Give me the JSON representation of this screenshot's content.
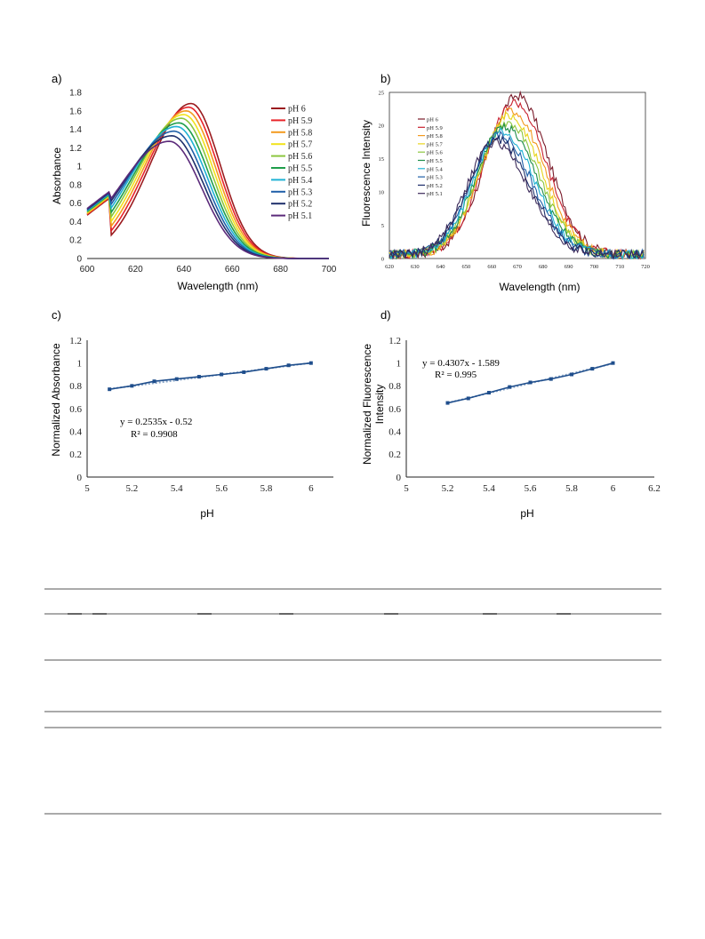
{
  "figure": {
    "charts": [
      {
        "panel_label": "a)",
        "type": "line",
        "xlabel": "Wavelength (nm)",
        "ylabel": "Absorbance",
        "xlim": [
          600,
          700
        ],
        "ylim": [
          0,
          1.8
        ],
        "xticks": [
          600,
          620,
          640,
          660,
          680,
          700
        ],
        "yticks": [
          0,
          0.2,
          0.4,
          0.6,
          0.8,
          1,
          1.2,
          1.4,
          1.6,
          1.8
        ],
        "x_tick_labels": [
          "600",
          "620",
          "640",
          "660",
          "680",
          "700"
        ],
        "y_tick_labels": [
          "0",
          "0.2",
          "0.4",
          "0.6",
          "0.8",
          "1",
          "1.2",
          "1.4",
          "1.6",
          "1.8"
        ],
        "legend_position": "right",
        "series": [
          {
            "name": "pH 6",
            "color": "#9b1b1f",
            "peak_x": 643,
            "peak_y": 1.68
          },
          {
            "name": "pH 5.9",
            "color": "#e8242a",
            "peak_x": 642,
            "peak_y": 1.64
          },
          {
            "name": "pH 5.8",
            "color": "#f39a1f",
            "peak_x": 641,
            "peak_y": 1.6
          },
          {
            "name": "pH 5.7",
            "color": "#f2e21c",
            "peak_x": 640,
            "peak_y": 1.56
          },
          {
            "name": "pH 5.6",
            "color": "#8cc63f",
            "peak_x": 639,
            "peak_y": 1.52
          },
          {
            "name": "pH 5.5",
            "color": "#1e9e4a",
            "peak_x": 638,
            "peak_y": 1.47
          },
          {
            "name": "pH 5.4",
            "color": "#1fb2d4",
            "peak_x": 637,
            "peak_y": 1.43
          },
          {
            "name": "pH 5.3",
            "color": "#1f5fa8",
            "peak_x": 636,
            "peak_y": 1.38
          },
          {
            "name": "pH 5.2",
            "color": "#1e2f6b",
            "peak_x": 635,
            "peak_y": 1.33
          },
          {
            "name": "pH 5.1",
            "color": "#5b2a7a",
            "peak_x": 634,
            "peak_y": 1.27
          }
        ]
      },
      {
        "panel_label": "b)",
        "type": "line",
        "xlabel": "Wavelength (nm)",
        "ylabel": "Fluorescence Intensity",
        "xlim": [
          620,
          720
        ],
        "ylim": [
          0,
          25
        ],
        "xticks": [
          620,
          630,
          640,
          650,
          660,
          670,
          680,
          690,
          700,
          710,
          720
        ],
        "yticks": [
          0,
          5,
          10,
          15,
          20,
          25
        ],
        "x_tick_labels": [
          "620",
          "630",
          "640",
          "650",
          "660",
          "670",
          "680",
          "690",
          "700",
          "710",
          "720"
        ],
        "y_tick_labels": [
          "0",
          "5",
          "10",
          "15",
          "20",
          "25"
        ],
        "legend_position": "left",
        "series": [
          {
            "name": "pH 6",
            "color": "#7a1b2a",
            "peak_x": 670,
            "peak_y": 24.5
          },
          {
            "name": "pH 5.9",
            "color": "#c8202e",
            "peak_x": 669,
            "peak_y": 23.5
          },
          {
            "name": "pH 5.8",
            "color": "#f39a1f",
            "peak_x": 668,
            "peak_y": 22.3
          },
          {
            "name": "pH 5.7",
            "color": "#e8d41c",
            "peak_x": 667,
            "peak_y": 21.5
          },
          {
            "name": "pH 5.6",
            "color": "#8cc63f",
            "peak_x": 666,
            "peak_y": 20.5
          },
          {
            "name": "pH 5.5",
            "color": "#1e8e4a",
            "peak_x": 665,
            "peak_y": 19.8
          },
          {
            "name": "pH 5.4",
            "color": "#1fb2d4",
            "peak_x": 664,
            "peak_y": 19.2
          },
          {
            "name": "pH 5.3",
            "color": "#1f5fa8",
            "peak_x": 663,
            "peak_y": 18.5
          },
          {
            "name": "pH 5.2",
            "color": "#1e2f6b",
            "peak_x": 662,
            "peak_y": 18.0
          },
          {
            "name": "pH 5.1",
            "color": "#3c2a5a",
            "peak_x": 661,
            "peak_y": 17.5
          }
        ]
      },
      {
        "panel_label": "c)",
        "type": "scatter",
        "xlabel": "pH",
        "ylabel": "Normalized Absorbance",
        "xlim": [
          5,
          6.1
        ],
        "ylim": [
          0,
          1.2
        ],
        "xticks": [
          5,
          5.2,
          5.4,
          5.6,
          5.8,
          6
        ],
        "yticks": [
          0,
          0.2,
          0.4,
          0.6,
          0.8,
          1,
          1.2
        ],
        "x_tick_labels": [
          "5",
          "5.2",
          "5.4",
          "5.6",
          "5.8",
          "6"
        ],
        "y_tick_labels": [
          "0",
          "0.2",
          "0.4",
          "0.6",
          "0.8",
          "1",
          "1.2"
        ],
        "x": [
          5.1,
          5.2,
          5.3,
          5.4,
          5.5,
          5.6,
          5.7,
          5.8,
          5.9,
          6.0
        ],
        "y": [
          0.77,
          0.8,
          0.84,
          0.86,
          0.88,
          0.9,
          0.92,
          0.95,
          0.98,
          1.0
        ],
        "trendline": {
          "slope": 0.2535,
          "intercept": -0.52,
          "from": 5.1,
          "to": 6.0
        },
        "equation": "y = 0.2535x - 0.52",
        "r2": "R² = 0.9908",
        "color": "#1f4e8c"
      },
      {
        "panel_label": "d)",
        "type": "scatter",
        "xlabel": "pH",
        "ylabel_line1": "Normalized Fluorescence",
        "ylabel_line2": "Intensity",
        "xlim": [
          5,
          6.2
        ],
        "ylim": [
          0,
          1.2
        ],
        "xticks": [
          5,
          5.2,
          5.4,
          5.6,
          5.8,
          6,
          6.2
        ],
        "yticks": [
          0,
          0.2,
          0.4,
          0.6,
          0.8,
          1,
          1.2
        ],
        "x_tick_labels": [
          "5",
          "5.2",
          "5.4",
          "5.6",
          "5.8",
          "6",
          "6.2"
        ],
        "y_tick_labels": [
          "0",
          "0.2",
          "0.4",
          "0.6",
          "0.8",
          "1",
          "1.2"
        ],
        "x": [
          5.2,
          5.3,
          5.4,
          5.5,
          5.6,
          5.7,
          5.8,
          5.9,
          6.0
        ],
        "y": [
          0.65,
          0.69,
          0.74,
          0.79,
          0.83,
          0.86,
          0.9,
          0.95,
          1.0
        ],
        "trendline": {
          "slope": 0.4307,
          "intercept": -1.589,
          "from": 5.2,
          "to": 6.0
        },
        "equation": "y = 0.4307x - 1.589",
        "r2": "R² = 0.995",
        "color": "#1f4e8c"
      }
    ]
  },
  "chart_data": [
    {
      "type": "line",
      "xlabel": "Wavelength (nm)",
      "ylabel": "Absorbance",
      "xlim": [
        600,
        700
      ],
      "ylim": [
        0,
        1.8
      ],
      "series": [
        {
          "name": "pH 6",
          "peak": [
            643,
            1.68
          ]
        },
        {
          "name": "pH 5.9",
          "peak": [
            642,
            1.64
          ]
        },
        {
          "name": "pH 5.8",
          "peak": [
            641,
            1.6
          ]
        },
        {
          "name": "pH 5.7",
          "peak": [
            640,
            1.56
          ]
        },
        {
          "name": "pH 5.6",
          "peak": [
            639,
            1.52
          ]
        },
        {
          "name": "pH 5.5",
          "peak": [
            638,
            1.47
          ]
        },
        {
          "name": "pH 5.4",
          "peak": [
            637,
            1.43
          ]
        },
        {
          "name": "pH 5.3",
          "peak": [
            636,
            1.38
          ]
        },
        {
          "name": "pH 5.2",
          "peak": [
            635,
            1.33
          ]
        },
        {
          "name": "pH 5.1",
          "peak": [
            634,
            1.27
          ]
        }
      ]
    },
    {
      "type": "line",
      "xlabel": "Wavelength (nm)",
      "ylabel": "Fluorescence Intensity",
      "xlim": [
        620,
        720
      ],
      "ylim": [
        0,
        25
      ],
      "series": [
        {
          "name": "pH 6",
          "peak": [
            670,
            24.5
          ]
        },
        {
          "name": "pH 5.9",
          "peak": [
            669,
            23.5
          ]
        },
        {
          "name": "pH 5.8",
          "peak": [
            668,
            22.3
          ]
        },
        {
          "name": "pH 5.7",
          "peak": [
            667,
            21.5
          ]
        },
        {
          "name": "pH 5.6",
          "peak": [
            666,
            20.5
          ]
        },
        {
          "name": "pH 5.5",
          "peak": [
            665,
            19.8
          ]
        },
        {
          "name": "pH 5.4",
          "peak": [
            664,
            19.2
          ]
        },
        {
          "name": "pH 5.3",
          "peak": [
            663,
            18.5
          ]
        },
        {
          "name": "pH 5.2",
          "peak": [
            662,
            18.0
          ]
        },
        {
          "name": "pH 5.1",
          "peak": [
            661,
            17.5
          ]
        }
      ]
    },
    {
      "type": "scatter",
      "xlabel": "pH",
      "ylabel": "Normalized Absorbance",
      "x": [
        5.1,
        5.2,
        5.3,
        5.4,
        5.5,
        5.6,
        5.7,
        5.8,
        5.9,
        6.0
      ],
      "y": [
        0.77,
        0.8,
        0.84,
        0.86,
        0.88,
        0.9,
        0.92,
        0.95,
        0.98,
        1.0
      ],
      "annotations": [
        "y = 0.2535x - 0.52",
        "R² = 0.9908"
      ]
    },
    {
      "type": "scatter",
      "xlabel": "pH",
      "ylabel": "Normalized Fluorescence Intensity",
      "x": [
        5.2,
        5.3,
        5.4,
        5.5,
        5.6,
        5.7,
        5.8,
        5.9,
        6.0
      ],
      "y": [
        0.65,
        0.69,
        0.74,
        0.79,
        0.83,
        0.86,
        0.9,
        0.95,
        1.0
      ],
      "annotations": [
        "y = 0.4307x - 1.589",
        "R² = 0.995"
      ]
    }
  ],
  "table": {
    "border_color": "#555555"
  }
}
